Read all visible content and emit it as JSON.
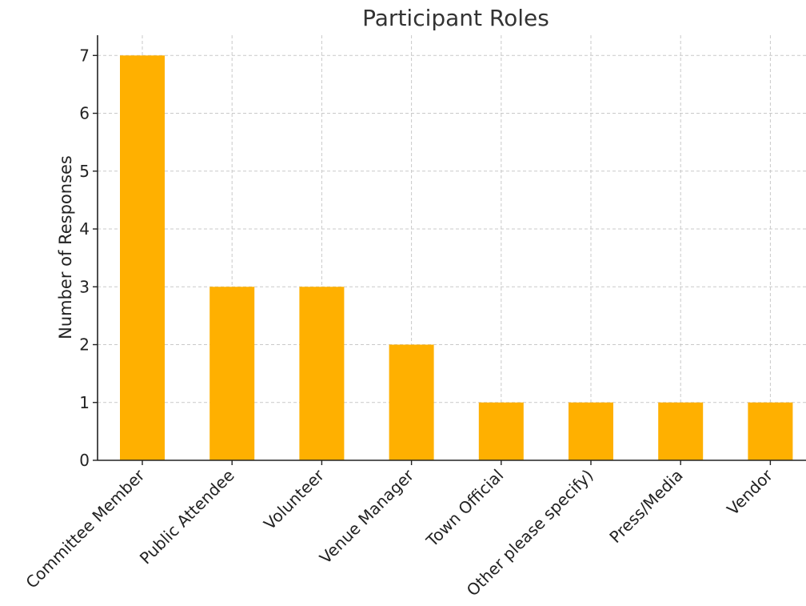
{
  "chart_data": {
    "type": "bar",
    "title": "Participant Roles",
    "xlabel": "",
    "ylabel": "Number of Responses",
    "categories": [
      "Committee Member",
      "Public Attendee",
      "Volunteer",
      "Venue Manager",
      "Town Official",
      "Other please specify)",
      "Press/Media",
      "Vendor"
    ],
    "values": [
      7,
      3,
      3,
      2,
      1,
      1,
      1,
      1
    ],
    "ylim": [
      0,
      7.35
    ],
    "yticks": [
      0,
      1,
      2,
      3,
      4,
      5,
      6,
      7
    ],
    "grid": true,
    "bar_color": "#FFB000"
  }
}
